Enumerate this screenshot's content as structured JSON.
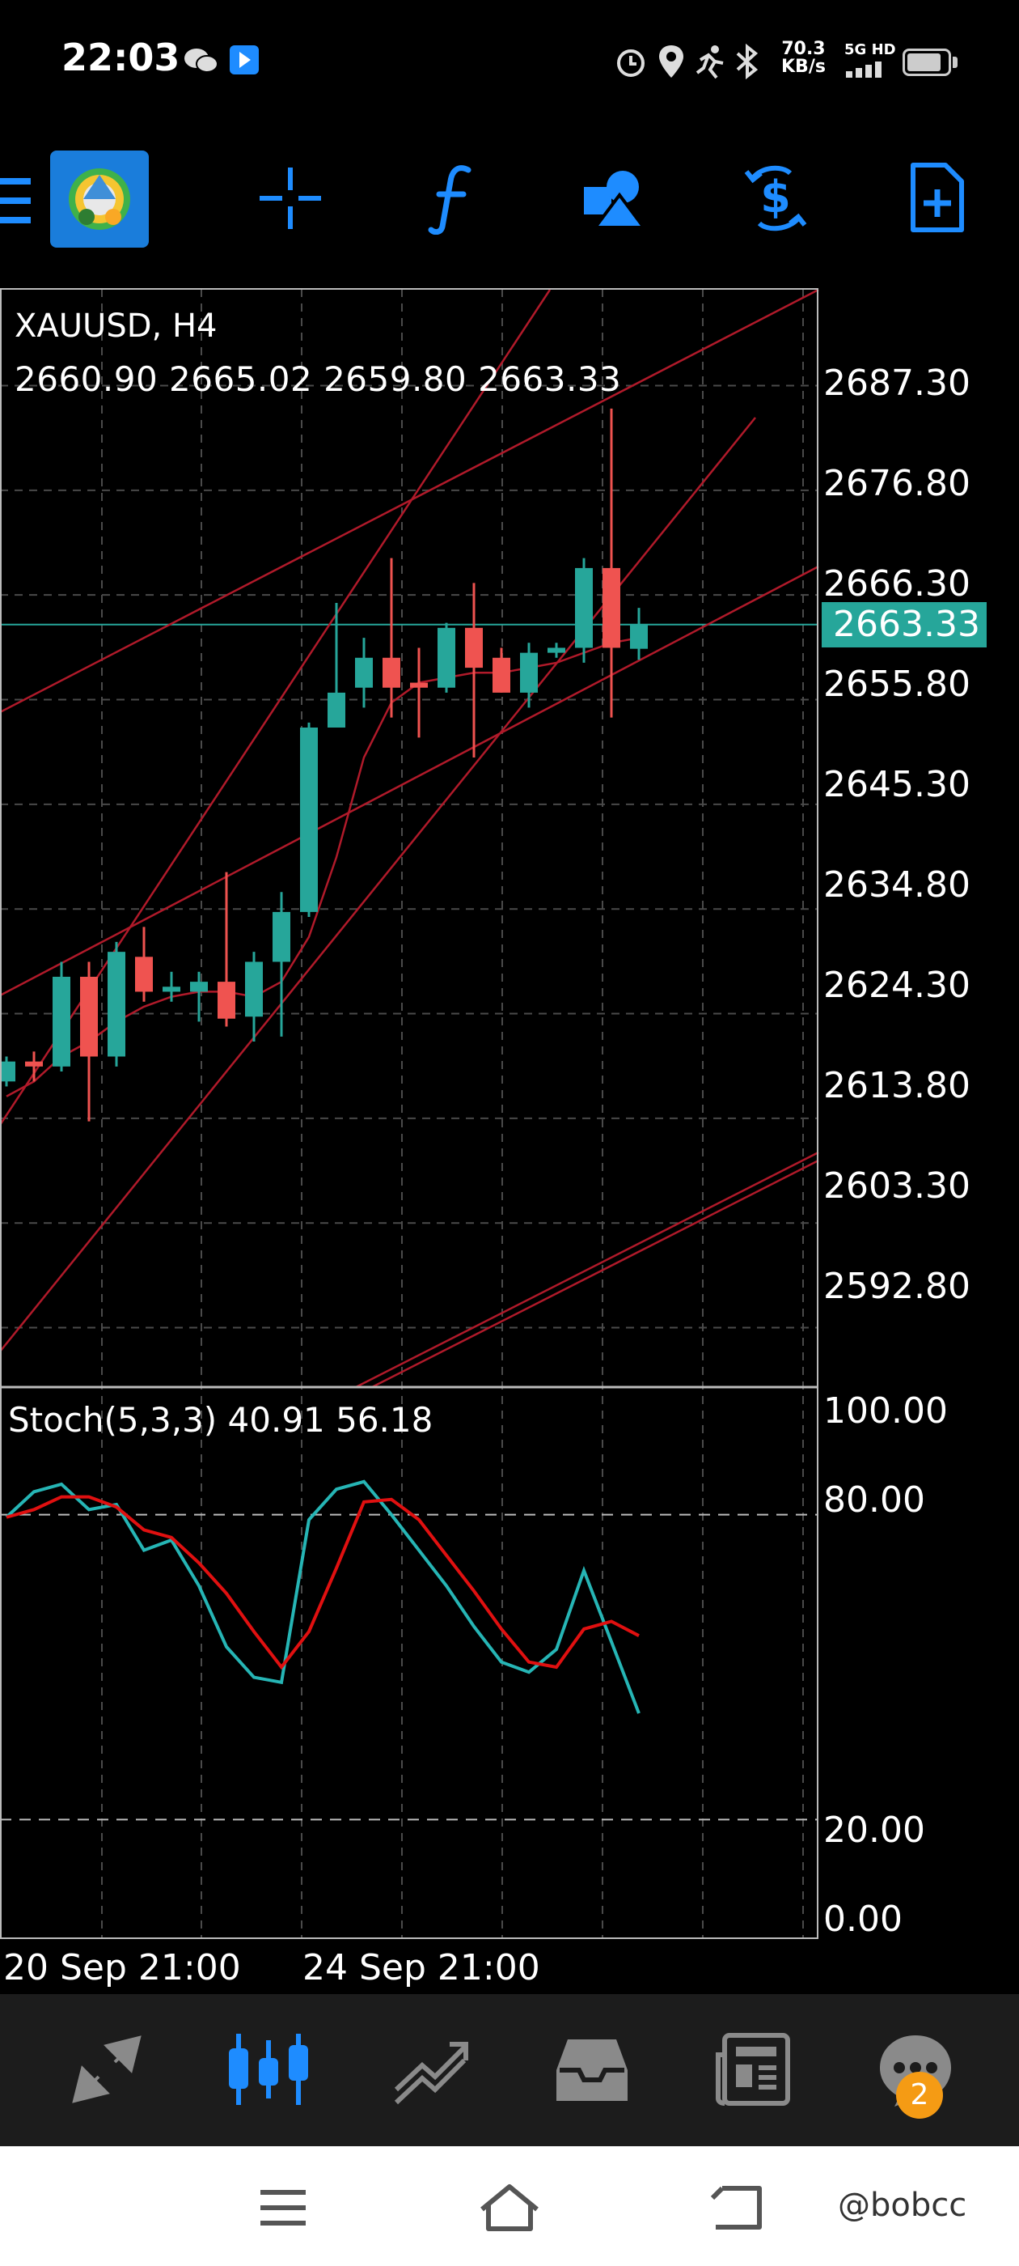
{
  "status_bar": {
    "time": "22:03",
    "net_speed_value": "70.3",
    "net_speed_unit": "KB/s",
    "net_tag_top": "5G HD",
    "battery_level": 0.85,
    "icons": [
      "wechat-icon",
      "app-notification-icon",
      "alarm-icon",
      "location-icon",
      "activity-icon",
      "bluetooth-icon",
      "signal-icon",
      "battery-icon"
    ]
  },
  "toolbar": {
    "icons": [
      "menu-icon",
      "metatrader-logo",
      "crosshair-icon",
      "indicator-function-icon",
      "objects-shapes-icon",
      "trade-dollar-icon",
      "new-order-document-icon"
    ],
    "accent": "#1e8cff"
  },
  "chart": {
    "symbol": "XAUUSD, H4",
    "ohlc": "2660.90 2665.02 2659.80 2663.33",
    "current_price": "2663.33",
    "bull_color": "#26a69a",
    "bear_color": "#ef5350",
    "line_color": "#b01a2a",
    "price_axis": [
      "2687.30",
      "2676.80",
      "2666.30",
      "2655.80",
      "2645.30",
      "2634.80",
      "2624.30",
      "2613.80",
      "2603.30",
      "2592.80"
    ],
    "stoch": {
      "label": "Stoch(5,3,3) 40.91 56.18",
      "levels": [
        "100.00",
        "80.00",
        "20.00",
        "0.00"
      ],
      "main_color": "#26b5b5",
      "signal_color": "#e01010"
    },
    "time_axis": [
      "20 Sep 21:00",
      "24 Sep 21:00"
    ]
  },
  "chart_data": {
    "type": "candlestick",
    "symbol": "XAUUSD",
    "timeframe": "H4",
    "ylim": [
      2587,
      2697
    ],
    "candles": [
      {
        "o": 2617.5,
        "h": 2620.0,
        "l": 2617.0,
        "c": 2619.5
      },
      {
        "o": 2619.5,
        "h": 2620.5,
        "l": 2617.5,
        "c": 2619.0
      },
      {
        "o": 2619.0,
        "h": 2629.5,
        "l": 2618.5,
        "c": 2628.0
      },
      {
        "o": 2628.0,
        "h": 2629.5,
        "l": 2613.5,
        "c": 2620.0
      },
      {
        "o": 2620.0,
        "h": 2631.5,
        "l": 2619.0,
        "c": 2630.5
      },
      {
        "o": 2630.0,
        "h": 2633.0,
        "l": 2625.5,
        "c": 2626.5
      },
      {
        "o": 2626.5,
        "h": 2628.5,
        "l": 2625.5,
        "c": 2627.0
      },
      {
        "o": 2626.5,
        "h": 2628.5,
        "l": 2623.5,
        "c": 2627.5
      },
      {
        "o": 2627.5,
        "h": 2638.5,
        "l": 2623.0,
        "c": 2623.8
      },
      {
        "o": 2624.0,
        "h": 2630.5,
        "l": 2621.5,
        "c": 2629.5
      },
      {
        "o": 2629.5,
        "h": 2636.5,
        "l": 2622.0,
        "c": 2634.5
      },
      {
        "o": 2634.5,
        "h": 2653.5,
        "l": 2634.0,
        "c": 2653.0
      },
      {
        "o": 2653.0,
        "h": 2665.5,
        "l": 2653.0,
        "c": 2656.5
      },
      {
        "o": 2657.0,
        "h": 2662.0,
        "l": 2655.0,
        "c": 2660.0
      },
      {
        "o": 2660.0,
        "h": 2670.0,
        "l": 2654.0,
        "c": 2657.0
      },
      {
        "o": 2657.5,
        "h": 2661.0,
        "l": 2652.0,
        "c": 2657.0
      },
      {
        "o": 2657.0,
        "h": 2663.5,
        "l": 2656.5,
        "c": 2663.0
      },
      {
        "o": 2663.0,
        "h": 2667.5,
        "l": 2650.0,
        "c": 2659.0
      },
      {
        "o": 2660.0,
        "h": 2661.0,
        "l": 2656.5,
        "c": 2656.5
      },
      {
        "o": 2656.5,
        "h": 2661.5,
        "l": 2655.0,
        "c": 2660.5
      },
      {
        "o": 2660.5,
        "h": 2661.5,
        "l": 2660.0,
        "c": 2661.0
      },
      {
        "o": 2661.0,
        "h": 2670.0,
        "l": 2659.5,
        "c": 2669.0
      },
      {
        "o": 2669.0,
        "h": 2685.0,
        "l": 2654.0,
        "c": 2661.0
      },
      {
        "o": 2660.9,
        "h": 2665.0,
        "l": 2659.8,
        "c": 2663.3
      }
    ],
    "moving_average": [
      2616.0,
      2617.5,
      2620.0,
      2621.5,
      2623.5,
      2625.0,
      2626.0,
      2626.5,
      2626.5,
      2626.0,
      2627.5,
      2632.0,
      2640.0,
      2650.0,
      2655.5,
      2657.5,
      2658.0,
      2658.5,
      2658.5,
      2659.0,
      2659.5,
      2660.5,
      2661.5,
      2662.0
    ],
    "stochastic": {
      "ylim": [
        0,
        100
      ],
      "main": [
        79.5,
        84.5,
        86,
        81,
        82,
        73,
        75,
        66,
        54,
        48,
        47,
        79,
        85,
        86.5,
        80,
        73,
        66,
        58,
        51,
        49,
        53.5,
        69,
        55,
        40.91
      ],
      "signal": [
        79.5,
        81,
        83.5,
        83.5,
        81.5,
        77,
        75.5,
        70.5,
        64.5,
        57,
        50,
        57,
        69.5,
        82.5,
        83,
        79,
        72,
        65,
        57.5,
        51,
        50,
        57.5,
        59,
        56.18
      ]
    },
    "time_labels": [
      "20 Sep 21:00",
      "24 Sep 21:00"
    ]
  },
  "bottom_nav": {
    "items": [
      "quotes-icon",
      "chart-icon",
      "trade-icon",
      "history-icon",
      "news-icon",
      "chat-icon"
    ],
    "active_index": 1,
    "chat_badge": "2"
  },
  "system_nav": {
    "items": [
      "menu-icon",
      "home-icon",
      "back-icon"
    ],
    "watermark": "@bobcc"
  }
}
